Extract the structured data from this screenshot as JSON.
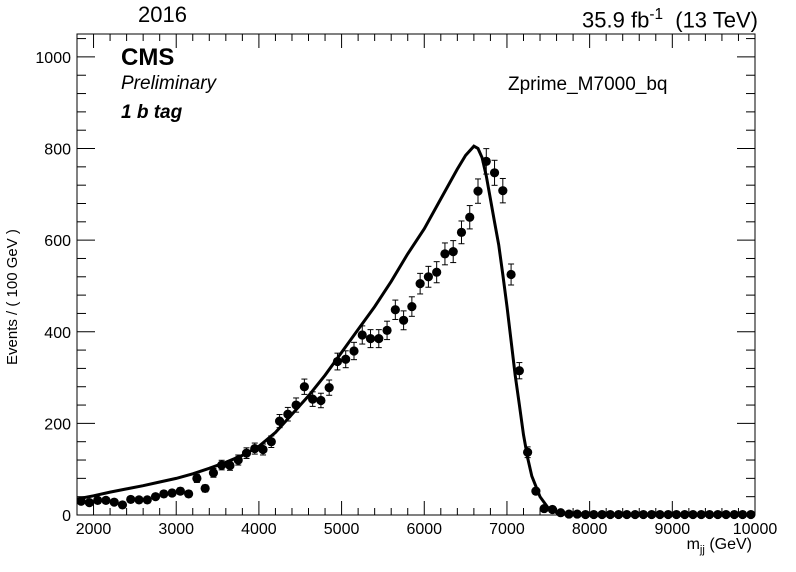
{
  "header": {
    "year": "2016",
    "lumi_value": "35.9 fb",
    "lumi_exp": "-1",
    "energy": "(13 TeV)"
  },
  "labels": {
    "cms": "CMS",
    "preliminary": "Preliminary",
    "category": "1 b tag",
    "sample": "Zprime_M7000_bq"
  },
  "chart_data": {
    "type": "scatter",
    "ylabel": "Events / ( 100 GeV )",
    "xlabel_main": "m",
    "xlabel_sub": "jj",
    "xlabel_unit": "(GeV)",
    "xlim": [
      1800,
      10000
    ],
    "ylim": [
      0,
      1050
    ],
    "xticks": [
      2000,
      3000,
      4000,
      5000,
      6000,
      7000,
      8000,
      9000,
      10000
    ],
    "yticks": [
      0,
      200,
      400,
      600,
      800,
      1000
    ],
    "series": [
      {
        "kind": "points-with-errors",
        "x": [
          1850,
          1950,
          2050,
          2150,
          2250,
          2350,
          2450,
          2550,
          2650,
          2750,
          2850,
          2950,
          3050,
          3150,
          3250,
          3350,
          3450,
          3550,
          3650,
          3750,
          3850,
          3950,
          4050,
          4150,
          4250,
          4350,
          4450,
          4550,
          4650,
          4750,
          4850,
          4950,
          5050,
          5150,
          5250,
          5350,
          5450,
          5550,
          5650,
          5750,
          5850,
          5950,
          6050,
          6150,
          6250,
          6350,
          6450,
          6550,
          6650,
          6750,
          6850,
          6950,
          7050,
          7150,
          7250,
          7350,
          7450,
          7550,
          7650,
          7750,
          7850,
          7950,
          8050,
          8150,
          8250,
          8350,
          8450,
          8550,
          8650,
          8750,
          8850,
          8950,
          9050,
          9150,
          9250,
          9350,
          9450,
          9550,
          9650,
          9750,
          9850,
          9950
        ],
        "y": [
          30,
          27,
          32,
          32,
          28,
          22,
          34,
          33,
          33,
          40,
          46,
          48,
          52,
          46,
          80,
          58,
          92,
          109,
          108,
          120,
          135,
          145,
          143,
          160,
          205,
          220,
          240,
          280,
          253,
          250,
          278,
          335,
          340,
          358,
          393,
          385,
          385,
          403,
          448,
          425,
          455,
          505,
          520,
          530,
          570,
          575,
          617,
          650,
          707,
          772,
          747,
          708,
          525,
          315,
          137,
          52,
          14,
          12,
          5,
          2,
          2,
          1,
          1,
          1,
          1,
          1,
          1,
          1,
          1,
          1,
          1,
          1,
          1,
          1,
          1,
          1,
          1,
          1,
          1,
          1,
          1,
          1
        ]
      },
      {
        "kind": "fit-curve",
        "x": [
          1800,
          2000,
          2200,
          2400,
          2600,
          2800,
          3000,
          3200,
          3400,
          3600,
          3800,
          4000,
          4200,
          4400,
          4600,
          4800,
          5000,
          5200,
          5400,
          5600,
          5800,
          6000,
          6200,
          6400,
          6500,
          6600,
          6650,
          6700,
          6750,
          6800,
          6850,
          6900,
          6950,
          7000,
          7050,
          7100,
          7150,
          7200,
          7250,
          7300,
          7400,
          7500,
          7600,
          7700,
          7800,
          8000,
          9000,
          10000
        ],
        "y": [
          35,
          42,
          50,
          57,
          64,
          72,
          80,
          90,
          102,
          115,
          130,
          150,
          180,
          220,
          260,
          305,
          355,
          405,
          455,
          510,
          570,
          625,
          690,
          755,
          785,
          805,
          800,
          780,
          740,
          690,
          640,
          590,
          525,
          455,
          380,
          305,
          240,
          175,
          125,
          85,
          40,
          15,
          5,
          2,
          1,
          0.5,
          0.2,
          0.1
        ]
      }
    ]
  }
}
